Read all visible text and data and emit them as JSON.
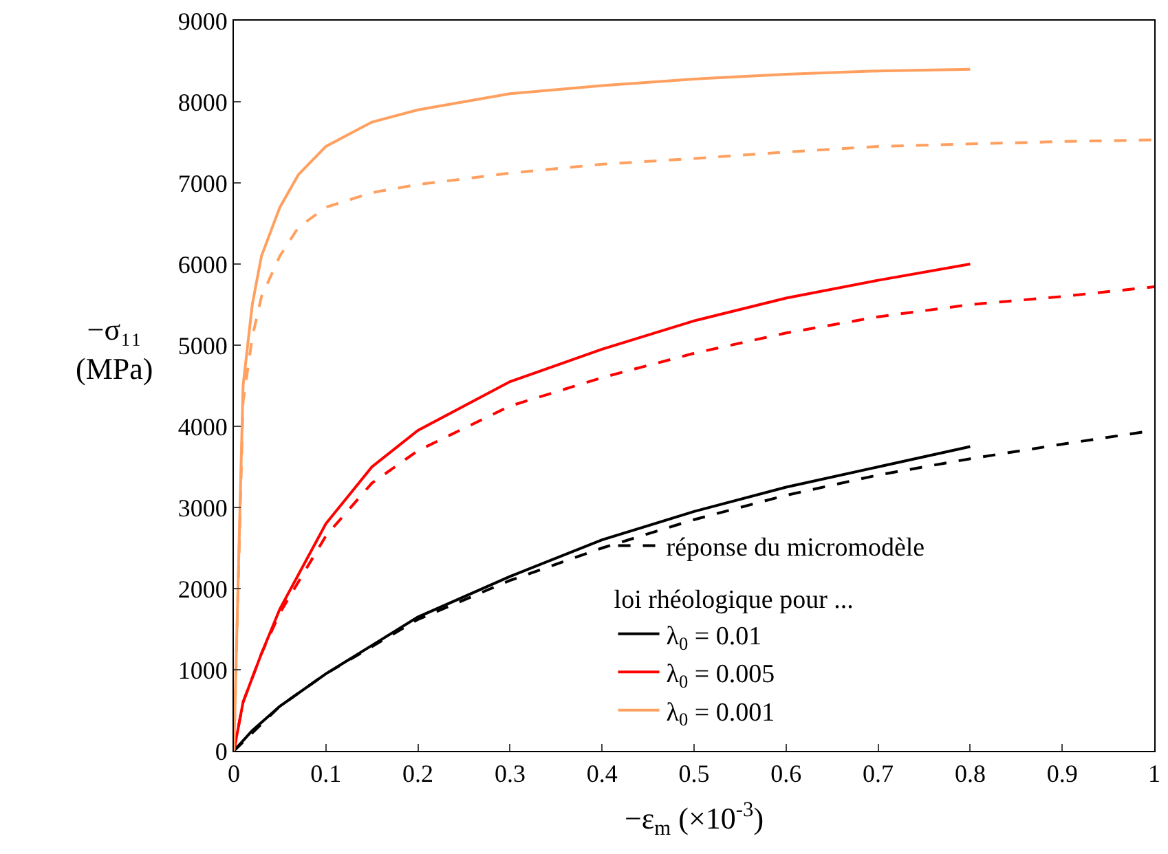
{
  "chart_data": {
    "type": "line",
    "xlabel": "−ε$_{m}$ (×10$^{-3}$)",
    "ylabel": "−σ₁₁\n(MPa)",
    "legend_title": "loi rhéologique pour ...",
    "xlim": [
      0,
      1
    ],
    "xticks": [
      0,
      0.1,
      0.2,
      0.3,
      0.4,
      0.5,
      0.6,
      0.7,
      0.8,
      0.9,
      1
    ],
    "ylim": [
      0,
      9000
    ],
    "yticks": [
      0,
      1000,
      2000,
      3000,
      4000,
      5000,
      6000,
      7000,
      8000,
      9000
    ],
    "legend": "bottom right",
    "marker": "none",
    "series": [
      {
        "name": "réponse du micromodèle",
        "color": "#000000",
        "line_style": "dashed",
        "x": [
          0,
          0.05,
          0.1,
          0.2,
          0.3,
          0.4,
          0.5,
          0.6,
          0.7,
          0.8,
          0.9,
          1
        ],
        "values": [
          0,
          550,
          950,
          1620,
          2100,
          2500,
          2850,
          3150,
          3400,
          3600,
          3780,
          3950
        ]
      },
      {
        "name": "λ$_{0}$ = 0.01",
        "color": "#000000",
        "line_style": "solid",
        "x": [
          0,
          0.02,
          0.05,
          0.1,
          0.15,
          0.2,
          0.3,
          0.4,
          0.5,
          0.6,
          0.7,
          0.8
        ],
        "values": [
          0,
          250,
          550,
          950,
          1300,
          1650,
          2150,
          2600,
          2950,
          3250,
          3500,
          3750
        ]
      },
      {
        "name": "λ$_{0}$ = 0.005",
        "color": "#ff0000",
        "line_style": "solid",
        "x": [
          0,
          0.01,
          0.03,
          0.05,
          0.1,
          0.15,
          0.2,
          0.3,
          0.4,
          0.5,
          0.6,
          0.7,
          0.8
        ],
        "values": [
          0,
          600,
          1200,
          1750,
          2800,
          3500,
          3950,
          4550,
          4950,
          5300,
          5580,
          5800,
          6000
        ]
      },
      {
        "name": "λ$_{0}$ = 0.001",
        "color": "#ffa060",
        "line_style": "solid",
        "x": [
          0,
          0.01,
          0.02,
          0.03,
          0.05,
          0.07,
          0.1,
          0.15,
          0.2,
          0.3,
          0.4,
          0.5,
          0.6,
          0.7,
          0.8
        ],
        "values": [
          0,
          4500,
          5500,
          6100,
          6700,
          7100,
          7450,
          7750,
          7900,
          8100,
          8200,
          8280,
          8340,
          8380,
          8400
        ]
      },
      {
        "color": "#ff0000",
        "line_style": "dashed",
        "x": [
          0,
          0.01,
          0.03,
          0.05,
          0.1,
          0.15,
          0.2,
          0.3,
          0.4,
          0.5,
          0.6,
          0.7,
          0.8,
          0.9,
          1
        ],
        "values": [
          0,
          600,
          1200,
          1700,
          2650,
          3300,
          3700,
          4250,
          4600,
          4900,
          5150,
          5350,
          5500,
          5600,
          5720
        ]
      },
      {
        "color": "#ffa060",
        "line_style": "dashed",
        "x": [
          0,
          0.01,
          0.02,
          0.03,
          0.05,
          0.07,
          0.1,
          0.15,
          0.2,
          0.3,
          0.4,
          0.5,
          0.6,
          0.7,
          0.8,
          0.9,
          1
        ],
        "values": [
          0,
          4300,
          5100,
          5600,
          6100,
          6450,
          6700,
          6880,
          6980,
          7120,
          7230,
          7300,
          7380,
          7450,
          7480,
          7510,
          7530
        ]
      }
    ]
  }
}
